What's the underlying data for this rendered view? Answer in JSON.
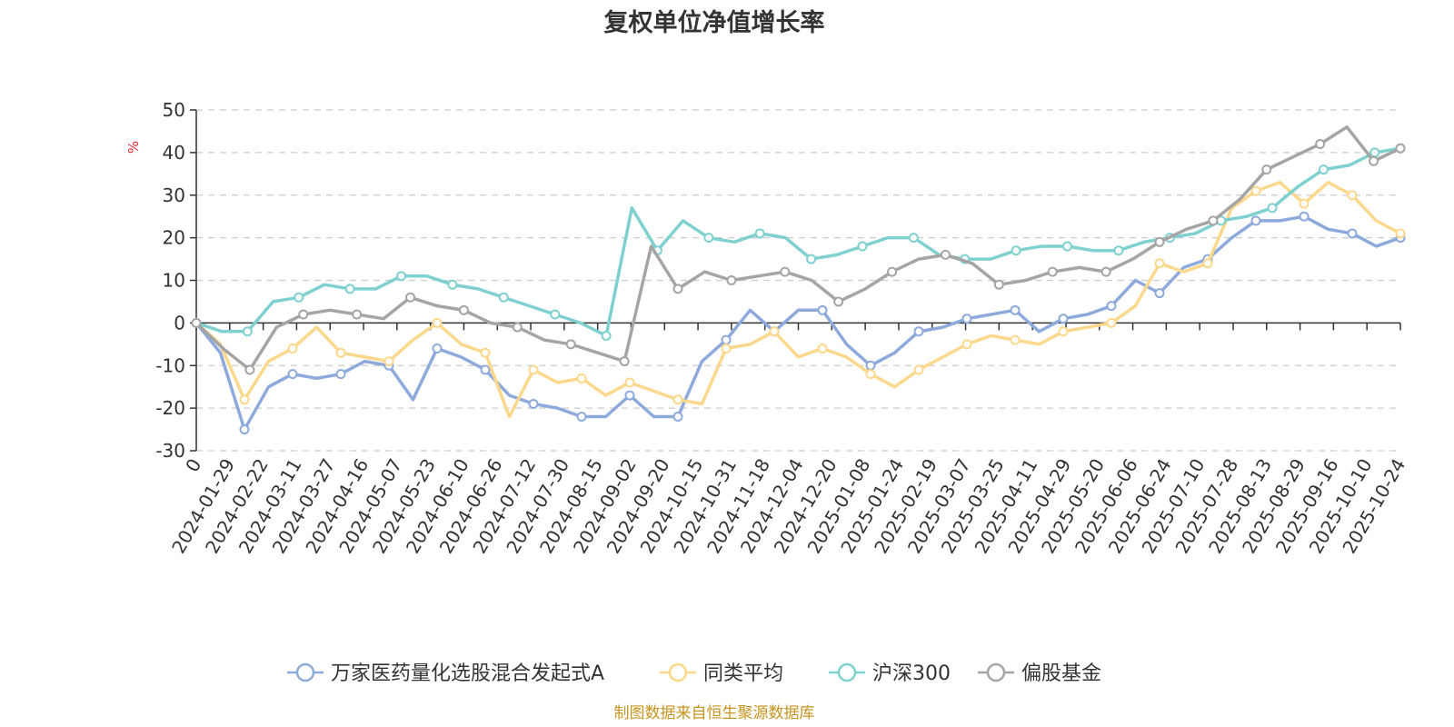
{
  "chart_data": {
    "type": "line",
    "title": "复权单位净值增长率",
    "ylabel": "%",
    "ylim": [
      -30,
      50
    ],
    "yticks": [
      50,
      40,
      30,
      20,
      10,
      0,
      -10,
      -20,
      -30
    ],
    "grid": true,
    "legend_position": "bottom",
    "x_tick_labels": [
      "0",
      "2024-01-29",
      "2024-02-22",
      "2024-03-11",
      "2024-03-27",
      "2024-04-16",
      "2024-05-07",
      "2024-05-23",
      "2024-06-10",
      "2024-06-26",
      "2024-07-12",
      "2024-07-30",
      "2024-08-15",
      "2024-09-02",
      "2024-09-20",
      "2024-10-15",
      "2024-10-31",
      "2024-11-18",
      "2024-12-04",
      "2024-12-20",
      "2025-01-08",
      "2025-01-24",
      "2025-02-19",
      "2025-03-07",
      "2025-03-25",
      "2025-04-11",
      "2025-04-29",
      "2025-05-20",
      "2025-06-06",
      "2025-06-24",
      "2025-07-10",
      "2025-07-28",
      "2025-08-13",
      "2025-08-29",
      "2025-09-16",
      "2025-10-10",
      "2025-10-24"
    ],
    "series": [
      {
        "name": "万家医药量化选股混合发起式A",
        "color": "#8ea9dc",
        "values": [
          0,
          -7,
          -25,
          -15,
          -12,
          -13,
          -12,
          -9,
          -10,
          -18,
          -6,
          -8,
          -11,
          -17,
          -19,
          -20,
          -22,
          -22,
          -17,
          -22,
          -22,
          -9,
          -4,
          3,
          -2,
          3,
          3,
          -5,
          -10,
          -7,
          -2,
          -1,
          1,
          2,
          3,
          -2,
          1,
          2,
          4,
          10,
          7,
          13,
          15,
          20,
          24,
          24,
          25,
          22,
          21,
          18,
          20
        ]
      },
      {
        "name": "同类平均",
        "color": "#fbd88b",
        "values": [
          0,
          -5,
          -18,
          -9,
          -6,
          -1,
          -7,
          -8,
          -9,
          -4,
          0,
          -5,
          -7,
          -22,
          -11,
          -14,
          -13,
          -17,
          -14,
          -16,
          -18,
          -19,
          -6,
          -5,
          -2,
          -8,
          -6,
          -8,
          -12,
          -15,
          -11,
          -8,
          -5,
          -3,
          -4,
          -5,
          -2,
          -1,
          0,
          4,
          14,
          12,
          14,
          27,
          31,
          33,
          28,
          33,
          30,
          24,
          21
        ]
      },
      {
        "name": "沪深300",
        "color": "#7fd1d0",
        "values": [
          0,
          -2,
          -2,
          5,
          6,
          9,
          8,
          8,
          11,
          11,
          9,
          8,
          6,
          4,
          2,
          0,
          -3,
          27,
          17,
          24,
          20,
          19,
          21,
          20,
          15,
          16,
          18,
          20,
          20,
          16,
          15,
          15,
          17,
          18,
          18,
          17,
          17,
          19,
          20,
          21,
          24,
          25,
          27,
          32,
          36,
          37,
          40,
          41
        ]
      },
      {
        "name": "偏股基金",
        "color": "#a5a5a5",
        "values": [
          0,
          -6,
          -11,
          -1,
          2,
          3,
          2,
          1,
          6,
          4,
          3,
          0,
          -1,
          -4,
          -5,
          -7,
          -9,
          18,
          8,
          12,
          10,
          11,
          12,
          10,
          5,
          8,
          12,
          15,
          16,
          14,
          9,
          10,
          12,
          13,
          12,
          15,
          19,
          22,
          24,
          29,
          36,
          39,
          42,
          46,
          38,
          41
        ]
      }
    ]
  },
  "footer": {
    "source": "制图数据来自恒生聚源数据库"
  }
}
